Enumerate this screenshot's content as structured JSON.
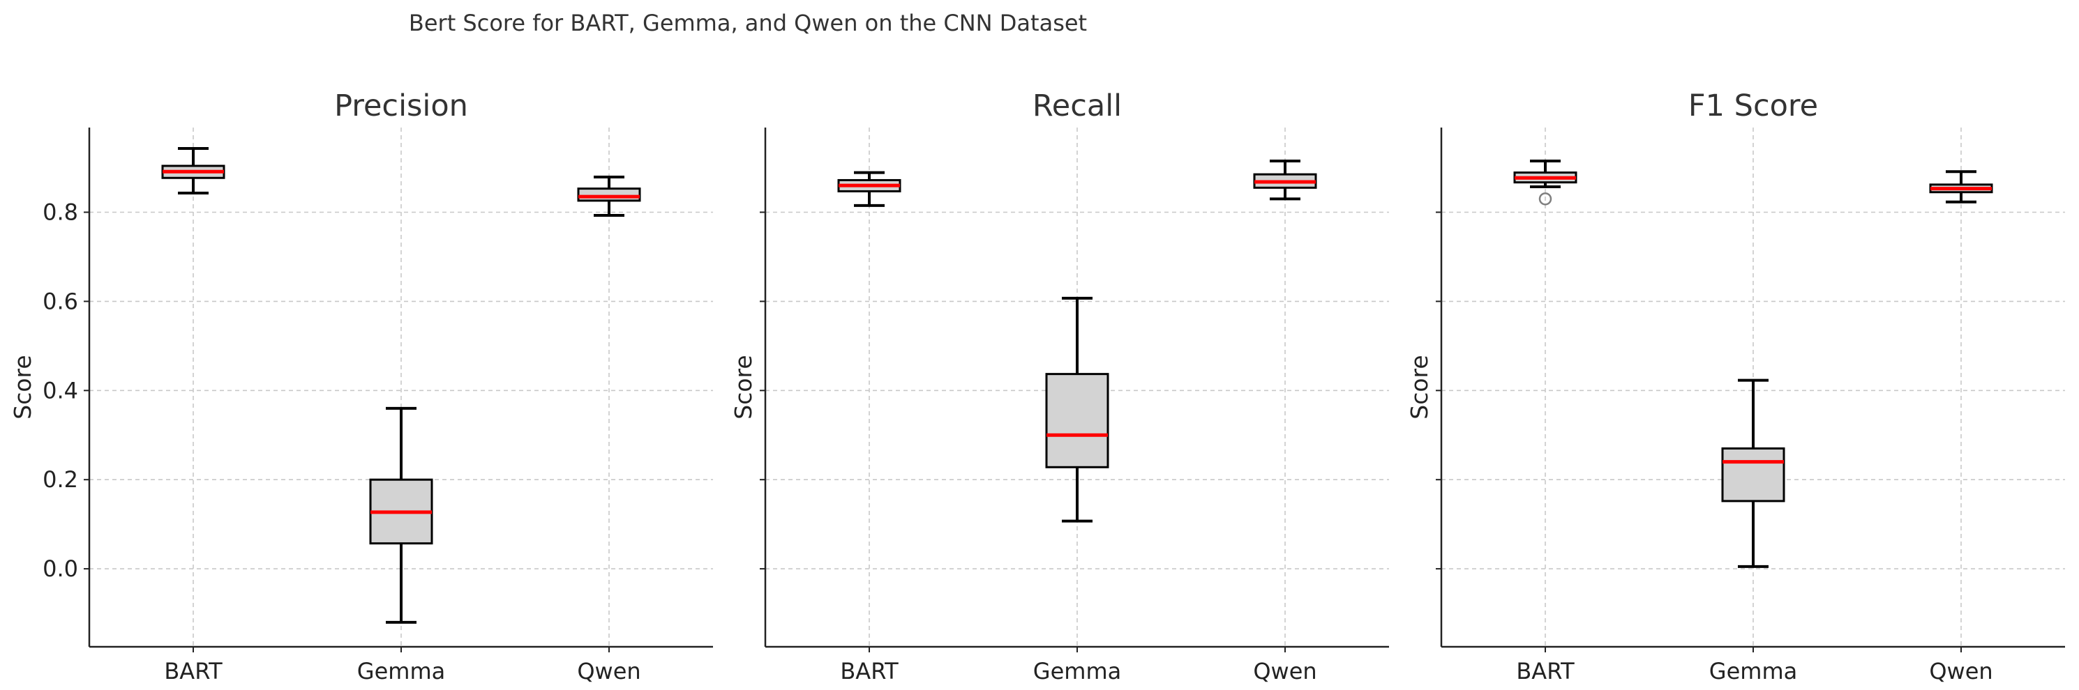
{
  "figure_title": "Bert Score for BART, Gemma, and Qwen on the CNN Dataset",
  "colors": {
    "box_fill": "#d3d3d3",
    "median": "#ff0000",
    "whisker": "#000000",
    "grid": "#c8c8c8",
    "flier": "#7f7f7f"
  },
  "chart_data": [
    {
      "type": "box",
      "title": "Precision",
      "xlabel": "",
      "ylabel": "Score",
      "categories": [
        "BART",
        "Gemma",
        "Qwen"
      ],
      "ylim": [
        -0.175,
        0.99
      ],
      "yticks": [
        0.0,
        0.2,
        0.4,
        0.6,
        0.8
      ],
      "ytick_labels": [
        "0.0",
        "0.2",
        "0.4",
        "0.6",
        "0.8"
      ],
      "grid": true,
      "boxes": [
        {
          "category": "BART",
          "whislo": 0.843,
          "q1": 0.877,
          "med": 0.891,
          "q3": 0.904,
          "whishi": 0.943,
          "fliers": []
        },
        {
          "category": "Gemma",
          "whislo": -0.12,
          "q1": 0.057,
          "med": 0.127,
          "q3": 0.2,
          "whishi": 0.36,
          "fliers": []
        },
        {
          "category": "Qwen",
          "whislo": 0.793,
          "q1": 0.826,
          "med": 0.835,
          "q3": 0.853,
          "whishi": 0.879,
          "fliers": []
        }
      ]
    },
    {
      "type": "box",
      "title": "Recall",
      "xlabel": "",
      "ylabel": "Score",
      "categories": [
        "BART",
        "Gemma",
        "Qwen"
      ],
      "ylim": [
        -0.175,
        0.99
      ],
      "yticks": [
        0.0,
        0.2,
        0.4,
        0.6,
        0.8
      ],
      "ytick_labels": [],
      "grid": true,
      "boxes": [
        {
          "category": "BART",
          "whislo": 0.815,
          "q1": 0.847,
          "med": 0.86,
          "q3": 0.872,
          "whishi": 0.889,
          "fliers": []
        },
        {
          "category": "Gemma",
          "whislo": 0.107,
          "q1": 0.228,
          "med": 0.3,
          "q3": 0.437,
          "whishi": 0.607,
          "fliers": []
        },
        {
          "category": "Qwen",
          "whislo": 0.83,
          "q1": 0.855,
          "med": 0.868,
          "q3": 0.885,
          "whishi": 0.915,
          "fliers": []
        }
      ]
    },
    {
      "type": "box",
      "title": "F1 Score",
      "xlabel": "",
      "ylabel": "Score",
      "categories": [
        "BART",
        "Gemma",
        "Qwen"
      ],
      "ylim": [
        -0.175,
        0.99
      ],
      "yticks": [
        0.0,
        0.2,
        0.4,
        0.6,
        0.8
      ],
      "ytick_labels": [],
      "grid": true,
      "boxes": [
        {
          "category": "BART",
          "whislo": 0.857,
          "q1": 0.867,
          "med": 0.877,
          "q3": 0.889,
          "whishi": 0.915,
          "fliers": [
            0.83
          ]
        },
        {
          "category": "Gemma",
          "whislo": 0.005,
          "q1": 0.152,
          "med": 0.24,
          "q3": 0.27,
          "whishi": 0.423,
          "fliers": []
        },
        {
          "category": "Qwen",
          "whislo": 0.823,
          "q1": 0.845,
          "med": 0.853,
          "q3": 0.862,
          "whishi": 0.891,
          "fliers": []
        }
      ]
    }
  ]
}
